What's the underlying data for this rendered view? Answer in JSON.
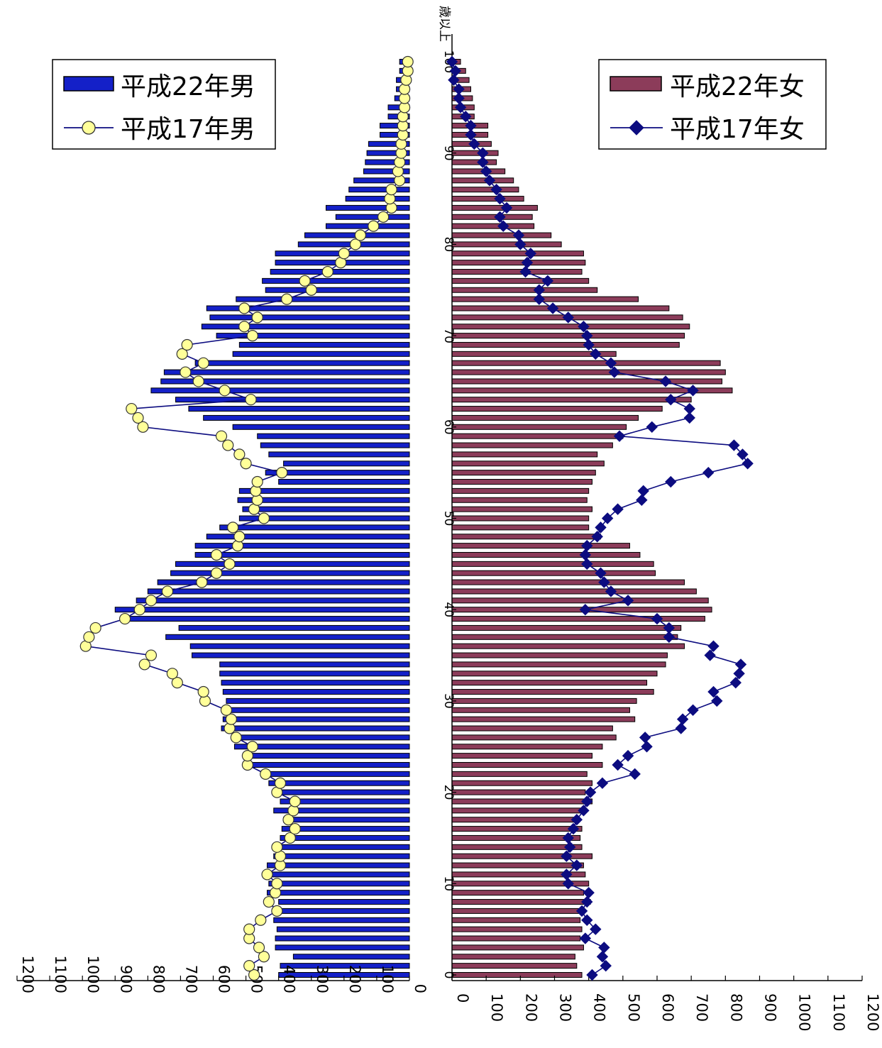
{
  "chart_data": {
    "type": "bar",
    "layout": "population-pyramid",
    "orientation": "horizontal",
    "ages": [
      0,
      1,
      2,
      3,
      4,
      5,
      6,
      7,
      8,
      9,
      10,
      11,
      12,
      13,
      14,
      15,
      16,
      17,
      18,
      19,
      20,
      21,
      22,
      23,
      24,
      25,
      26,
      27,
      28,
      29,
      30,
      31,
      32,
      33,
      34,
      35,
      36,
      37,
      38,
      39,
      40,
      41,
      42,
      43,
      44,
      45,
      46,
      47,
      48,
      49,
      50,
      51,
      52,
      53,
      54,
      55,
      56,
      57,
      58,
      59,
      60,
      61,
      62,
      63,
      64,
      65,
      66,
      67,
      68,
      69,
      70,
      71,
      72,
      73,
      74,
      75,
      76,
      77,
      78,
      79,
      80,
      81,
      82,
      83,
      84,
      85,
      86,
      87,
      88,
      89,
      90,
      91,
      92,
      93,
      94,
      95,
      96,
      97,
      98,
      99,
      100
    ],
    "age_ticks": [
      0,
      10,
      20,
      30,
      40,
      50,
      60,
      70,
      80,
      90,
      100
    ],
    "age_tick_labels": [
      "0",
      "10",
      "20",
      "30",
      "40",
      "50",
      "60",
      "70",
      "80",
      "90",
      "100"
    ],
    "age_axis_suffix": "歳以上",
    "value_ticks": [
      0,
      100,
      200,
      300,
      400,
      500,
      600,
      700,
      800,
      900,
      1000,
      1100,
      1200
    ],
    "value_tick_labels": [
      "0",
      "100",
      "200",
      "300",
      "400",
      "500",
      "600",
      "700",
      "800",
      "900",
      "1000",
      "1100",
      "1200"
    ],
    "xlim_male": [
      0,
      1200
    ],
    "xlim_female": [
      0,
      1200
    ],
    "series": [
      {
        "name": "平成22年男",
        "kind": "bar",
        "side": "left",
        "color": "#1420c8",
        "values": [
          400,
          395,
          355,
          410,
          410,
          405,
          415,
          405,
          400,
          435,
          430,
          425,
          435,
          415,
          415,
          395,
          390,
          385,
          415,
          395,
          395,
          430,
          440,
          490,
          490,
          535,
          535,
          575,
          570,
          565,
          560,
          570,
          575,
          580,
          580,
          665,
          670,
          745,
          705,
          860,
          900,
          835,
          800,
          770,
          730,
          715,
          655,
          655,
          620,
          580,
          520,
          510,
          525,
          520,
          400,
          440,
          385,
          430,
          455,
          465,
          540,
          630,
          675,
          715,
          790,
          760,
          750,
          655,
          540,
          520,
          590,
          635,
          610,
          620,
          530,
          440,
          450,
          425,
          410,
          410,
          340,
          320,
          255,
          225,
          255,
          195,
          185,
          170,
          140,
          135,
          130,
          125,
          90,
          90,
          65,
          65,
          45,
          40,
          40,
          30,
          30
        ]
      },
      {
        "name": "平成17年男",
        "kind": "line",
        "side": "left",
        "color": "#0c0c80",
        "marker": "circle",
        "marker_fill": "#ffff99",
        "values": [
          475,
          490,
          445,
          460,
          490,
          490,
          455,
          405,
          430,
          410,
          405,
          435,
          395,
          395,
          405,
          365,
          350,
          370,
          355,
          350,
          405,
          395,
          440,
          495,
          495,
          480,
          530,
          550,
          545,
          560,
          625,
          630,
          710,
          725,
          810,
          790,
          990,
          980,
          960,
          870,
          825,
          790,
          740,
          635,
          590,
          550,
          590,
          525,
          520,
          540,
          445,
          475,
          465,
          470,
          465,
          390,
          500,
          520,
          555,
          575,
          815,
          830,
          850,
          485,
          565,
          645,
          685,
          630,
          695,
          680,
          480,
          505,
          465,
          505,
          375,
          300,
          320,
          250,
          210,
          200,
          165,
          150,
          110,
          80,
          55,
          60,
          55,
          30,
          35,
          30,
          25,
          25,
          20,
          20,
          20,
          15,
          15,
          15,
          10,
          5,
          5
        ]
      },
      {
        "name": "平成22年女",
        "kind": "bar",
        "side": "right",
        "color": "#8c3c5a",
        "values": [
          380,
          365,
          360,
          385,
          375,
          380,
          375,
          385,
          405,
          385,
          400,
          390,
          385,
          410,
          380,
          375,
          380,
          365,
          380,
          410,
          390,
          410,
          395,
          440,
          410,
          440,
          480,
          470,
          535,
          520,
          540,
          590,
          570,
          600,
          625,
          630,
          680,
          660,
          670,
          740,
          760,
          750,
          715,
          680,
          595,
          590,
          550,
          520,
          435,
          400,
          400,
          410,
          395,
          400,
          410,
          420,
          445,
          425,
          470,
          500,
          510,
          545,
          615,
          700,
          820,
          790,
          800,
          785,
          480,
          665,
          680,
          695,
          675,
          635,
          545,
          425,
          400,
          380,
          390,
          385,
          320,
          290,
          240,
          235,
          250,
          210,
          195,
          180,
          155,
          130,
          135,
          115,
          105,
          105,
          65,
          65,
          60,
          55,
          50,
          40,
          25
        ]
      },
      {
        "name": "平成17年女",
        "kind": "line",
        "side": "right",
        "color": "#0c0c80",
        "marker": "diamond",
        "marker_fill": "#0c0c80",
        "values": [
          410,
          450,
          440,
          445,
          390,
          420,
          395,
          380,
          395,
          400,
          340,
          335,
          365,
          335,
          345,
          340,
          355,
          365,
          385,
          395,
          405,
          440,
          535,
          485,
          515,
          570,
          565,
          670,
          675,
          705,
          775,
          765,
          830,
          840,
          845,
          755,
          765,
          635,
          635,
          600,
          390,
          515,
          465,
          445,
          435,
          395,
          390,
          395,
          425,
          435,
          455,
          485,
          555,
          560,
          640,
          750,
          865,
          850,
          825,
          490,
          585,
          695,
          695,
          640,
          705,
          625,
          475,
          465,
          420,
          400,
          395,
          385,
          340,
          295,
          255,
          255,
          280,
          215,
          220,
          230,
          200,
          195,
          150,
          140,
          160,
          140,
          130,
          110,
          100,
          90,
          90,
          65,
          55,
          55,
          40,
          25,
          20,
          20,
          5,
          10,
          0
        ]
      }
    ],
    "legend": {
      "left_placement": "top-left",
      "right_placement": "top-right",
      "left": [
        "平成22年男",
        "平成17年男"
      ],
      "right": [
        "平成22年女",
        "平成17年女"
      ]
    },
    "grid": false,
    "title": "",
    "xlabel": "",
    "ylabel": ""
  }
}
